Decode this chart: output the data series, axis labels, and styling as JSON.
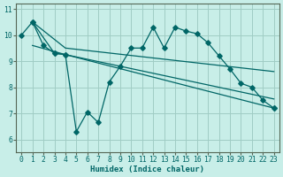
{
  "xlabel": "Humidex (Indice chaleur)",
  "bg_color": "#c8eee8",
  "grid_color": "#a0ccc4",
  "line_color": "#006666",
  "xlim": [
    -0.5,
    23.5
  ],
  "ylim": [
    5.5,
    11.2
  ],
  "yticks": [
    6,
    7,
    8,
    9,
    10,
    11
  ],
  "xticks": [
    0,
    1,
    2,
    3,
    4,
    5,
    6,
    7,
    8,
    9,
    10,
    11,
    12,
    13,
    14,
    15,
    16,
    17,
    18,
    19,
    20,
    21,
    22,
    23
  ],
  "line1_x": [
    0,
    1,
    2,
    3,
    4,
    5,
    6,
    7,
    8,
    9,
    10,
    11,
    12,
    13,
    14,
    15,
    16,
    17,
    18,
    19,
    20,
    21,
    22,
    23
  ],
  "line1_y": [
    10.0,
    10.5,
    9.6,
    9.3,
    9.25,
    6.3,
    7.05,
    6.65,
    8.2,
    8.8,
    9.5,
    9.5,
    10.3,
    9.5,
    10.3,
    10.15,
    10.05,
    9.7,
    9.2,
    8.7,
    8.15,
    8.0,
    7.5,
    7.2
  ],
  "line2_x": [
    1,
    3,
    4,
    23
  ],
  "line2_y": [
    10.5,
    9.3,
    9.25,
    7.2
  ],
  "line3_x": [
    1,
    4,
    23
  ],
  "line3_y": [
    10.5,
    9.5,
    8.6
  ],
  "line4_x": [
    1,
    4,
    23
  ],
  "line4_y": [
    9.6,
    9.25,
    7.55
  ],
  "marker": "D",
  "marker_size": 2.8,
  "lw": 0.9,
  "tick_fontsize": 5.8,
  "xlabel_fontsize": 6.5,
  "xlabel_bold": true
}
